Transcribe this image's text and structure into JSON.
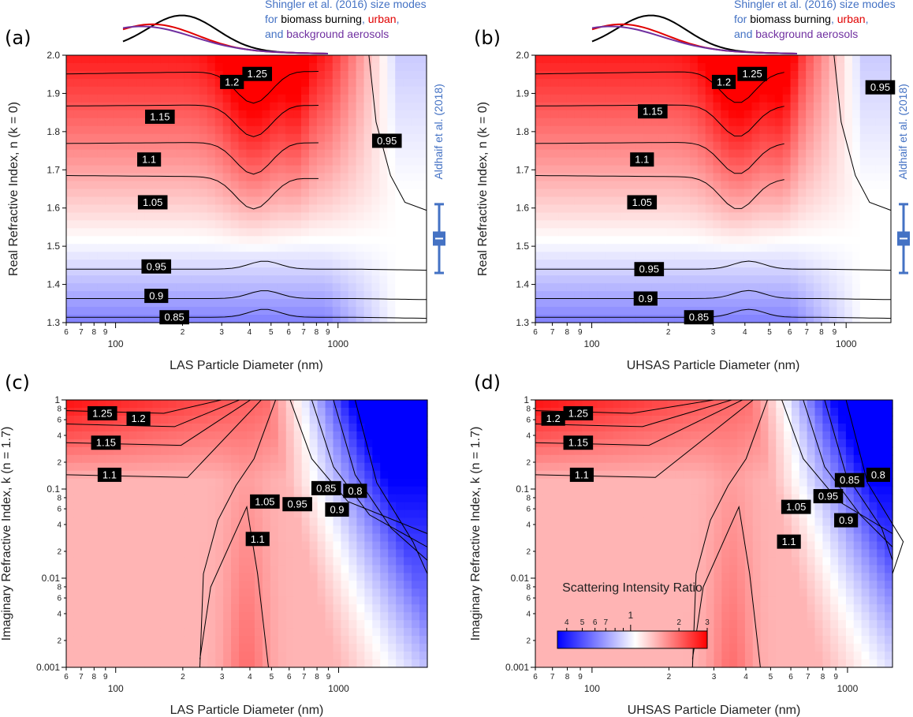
{
  "chart_data": [
    {
      "panel": "(a)",
      "type": "heatmap",
      "xlabel": "LAS Particle Diameter (nm)",
      "ylabel": "Real Refractive Index, n (k = 0)",
      "xscale": "log",
      "xlim": [
        60,
        2500
      ],
      "ylim": [
        1.3,
        2.0
      ],
      "xticks_major": [
        "100",
        "1000"
      ],
      "xticks_minor": [
        "6",
        "7",
        "8",
        "9",
        "2",
        "3",
        "4",
        "5",
        "6",
        "7",
        "8",
        "9"
      ],
      "yticks": [
        "1.3",
        "1.4",
        "1.5",
        "1.6",
        "1.7",
        "1.8",
        "1.9",
        "2.0"
      ],
      "contour_labels": [
        "1.25",
        "1.2",
        "1.15",
        "1.1",
        "1.05",
        "0.95",
        "0.9",
        "0.85",
        "0.95"
      ],
      "contour_levels": [
        0.85,
        0.9,
        0.95,
        1.05,
        1.1,
        1.15,
        1.2,
        1.25
      ],
      "size_modes_annotation": {
        "line1": "Shingler et al. (2016) size modes",
        "line2_prefix": "for ",
        "biomass": "biomass burning",
        "sep": ", ",
        "urban": "urban",
        "line3_prefix": ",",
        "line3_and": "and ",
        "background": "background aerosols"
      },
      "reference_annotation": "Aldhaif et al. (2018)",
      "reference_range": {
        "n_center": 1.52,
        "n_min": 1.43,
        "n_max": 1.61
      }
    },
    {
      "panel": "(b)",
      "type": "heatmap",
      "xlabel": "UHSAS Particle Diameter (nm)",
      "ylabel": "Real Refractive Index, n (k = 0)",
      "xscale": "log",
      "xlim": [
        60,
        1500
      ],
      "ylim": [
        1.3,
        2.0
      ],
      "xticks_major": [
        "100",
        "1000"
      ],
      "xticks_minor": [
        "6",
        "7",
        "8",
        "9",
        "2",
        "3",
        "4",
        "5",
        "6",
        "7",
        "8",
        "9"
      ],
      "yticks": [
        "1.3",
        "1.4",
        "1.5",
        "1.6",
        "1.7",
        "1.8",
        "1.9",
        "2.0"
      ],
      "contour_labels": [
        "1.25",
        "1.2",
        "1.15",
        "1.1",
        "1.05",
        "0.95",
        "0.9",
        "0.85",
        "0.95"
      ],
      "contour_levels": [
        0.85,
        0.9,
        0.95,
        1.05,
        1.1,
        1.15,
        1.2,
        1.25
      ],
      "size_modes_annotation": {
        "line1": "Shingler et al. (2016) size modes",
        "line2_prefix": "for ",
        "biomass": "biomass burning",
        "sep": ", ",
        "urban": "urban",
        "line3_prefix": ",",
        "line3_and": "and ",
        "background": "background aerosols"
      },
      "reference_annotation": "Aldhaif et al. (2018)",
      "reference_range": {
        "n_center": 1.52,
        "n_min": 1.43,
        "n_max": 1.61
      }
    },
    {
      "panel": "(c)",
      "type": "heatmap",
      "xlabel": "LAS Particle Diameter (nm)",
      "ylabel": "Imaginary Refractive Index, k (n = 1.7)",
      "xscale": "log",
      "xlim": [
        60,
        2500
      ],
      "yscale": "log",
      "ylim": [
        0.001,
        1
      ],
      "xticks_major": [
        "100",
        "1000"
      ],
      "xticks_minor": [
        "6",
        "7",
        "8",
        "9",
        "2",
        "3",
        "4",
        "5",
        "6",
        "7",
        "8",
        "9"
      ],
      "yticks": [
        "0.001",
        "0.01",
        "0.1",
        "1"
      ],
      "yticks_minor": [
        "2",
        "4",
        "6",
        "8"
      ],
      "contour_labels": [
        "1.25",
        "1.2",
        "1.15",
        "1.1",
        "1.05",
        "1.1",
        "0.95",
        "0.85",
        "0.8",
        "0.9"
      ],
      "contour_levels": [
        0.8,
        0.85,
        0.9,
        0.95,
        1.05,
        1.1,
        1.15,
        1.2,
        1.25
      ]
    },
    {
      "panel": "(d)",
      "type": "heatmap",
      "xlabel": "UHSAS Particle Diameter (nm)",
      "ylabel": "Imaginary Refractive Index, k (n = 1.7)",
      "xscale": "log",
      "xlim": [
        60,
        1500
      ],
      "yscale": "log",
      "ylim": [
        0.001,
        1
      ],
      "xticks_major": [
        "100",
        "1000"
      ],
      "xticks_minor": [
        "6",
        "7",
        "8",
        "9",
        "2",
        "3",
        "4",
        "5",
        "6",
        "7",
        "8",
        "9"
      ],
      "yticks": [
        "0.001",
        "0.01",
        "0.1",
        "1"
      ],
      "yticks_minor": [
        "2",
        "4",
        "6",
        "8"
      ],
      "contour_labels": [
        "1.25",
        "1.2",
        "1.15",
        "1.1",
        "1.05",
        "1.1",
        "0.95",
        "0.85",
        "0.8",
        "0.9"
      ],
      "contour_levels": [
        0.8,
        0.85,
        0.9,
        0.95,
        1.05,
        1.1,
        1.15,
        1.2,
        1.25
      ],
      "colorbar": {
        "title": "Scattering Intensity Ratio",
        "scale": "log",
        "range": [
          0.35,
          3
        ],
        "center_label": "1",
        "tick_labels_low": [
          "4",
          "5",
          "6",
          "7"
        ],
        "tick_labels_high": [
          "2",
          "3"
        ],
        "colormap": [
          "#0000ff",
          "#ffffff",
          "#ff0000"
        ]
      }
    }
  ],
  "colors": {
    "low": "#0000ff",
    "mid": "#ffffff",
    "high": "#ff0000",
    "annotation_blue": "#4472c4",
    "biomass": "#000000",
    "urban": "#e00000",
    "background": "#7030a0",
    "reference_bar": "#4472c4"
  }
}
